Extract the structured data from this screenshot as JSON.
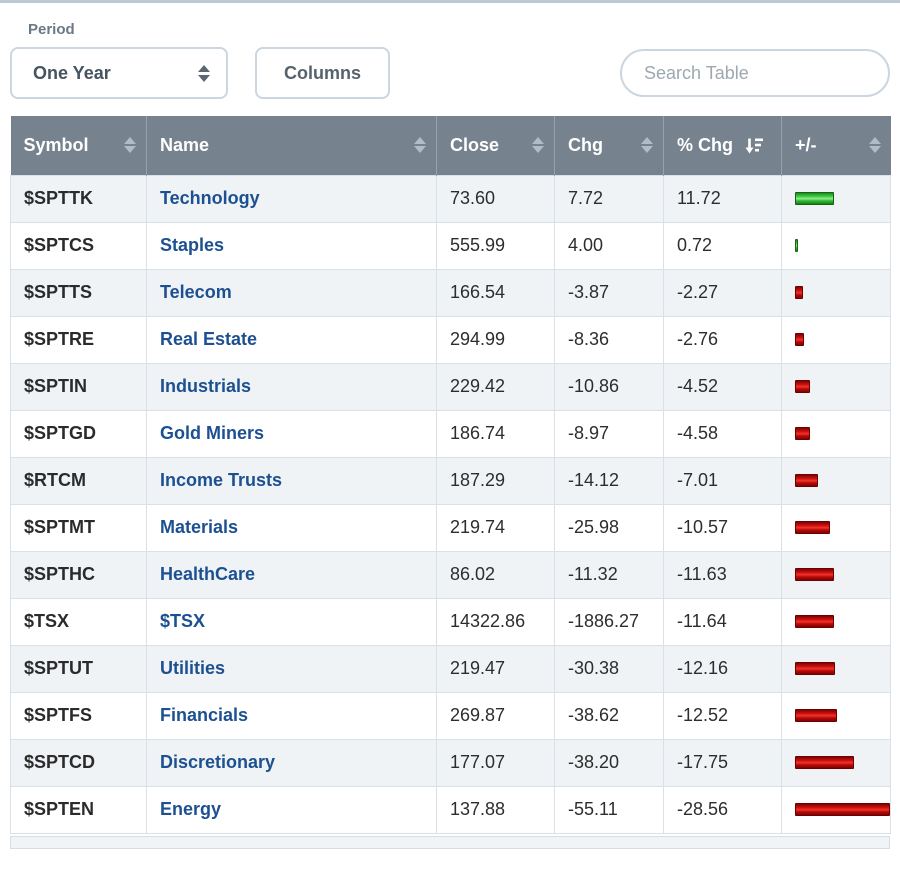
{
  "controls": {
    "period_label": "Period",
    "period_value": "One Year",
    "columns_label": "Columns",
    "search_placeholder": "Search Table"
  },
  "table": {
    "columns": [
      {
        "label": "Symbol",
        "sort": "none"
      },
      {
        "label": "Name",
        "sort": "none"
      },
      {
        "label": "Close",
        "sort": "none"
      },
      {
        "label": "Chg",
        "sort": "none"
      },
      {
        "label": "% Chg",
        "sort": "desc"
      },
      {
        "label": "+/-",
        "sort": "none"
      }
    ],
    "rows": [
      {
        "symbol": "$SPTTK",
        "name": "Technology",
        "close": "73.60",
        "chg": "7.72",
        "pct_chg": "11.72",
        "direction": "up"
      },
      {
        "symbol": "$SPTCS",
        "name": "Staples",
        "close": "555.99",
        "chg": "4.00",
        "pct_chg": "0.72",
        "direction": "up"
      },
      {
        "symbol": "$SPTTS",
        "name": "Telecom",
        "close": "166.54",
        "chg": "-3.87",
        "pct_chg": "-2.27",
        "direction": "down"
      },
      {
        "symbol": "$SPTRE",
        "name": "Real Estate",
        "close": "294.99",
        "chg": "-8.36",
        "pct_chg": "-2.76",
        "direction": "down"
      },
      {
        "symbol": "$SPTIN",
        "name": "Industrials",
        "close": "229.42",
        "chg": "-10.86",
        "pct_chg": "-4.52",
        "direction": "down"
      },
      {
        "symbol": "$SPTGD",
        "name": "Gold Miners",
        "close": "186.74",
        "chg": "-8.97",
        "pct_chg": "-4.58",
        "direction": "down"
      },
      {
        "symbol": "$RTCM",
        "name": "Income Trusts",
        "close": "187.29",
        "chg": "-14.12",
        "pct_chg": "-7.01",
        "direction": "down"
      },
      {
        "symbol": "$SPTMT",
        "name": "Materials",
        "close": "219.74",
        "chg": "-25.98",
        "pct_chg": "-10.57",
        "direction": "down"
      },
      {
        "symbol": "$SPTHC",
        "name": "HealthCare",
        "close": "86.02",
        "chg": "-11.32",
        "pct_chg": "-11.63",
        "direction": "down"
      },
      {
        "symbol": "$TSX",
        "name": "$TSX",
        "close": "14322.86",
        "chg": "-1886.27",
        "pct_chg": "-11.64",
        "direction": "down"
      },
      {
        "symbol": "$SPTUT",
        "name": "Utilities",
        "close": "219.47",
        "chg": "-30.38",
        "pct_chg": "-12.16",
        "direction": "down"
      },
      {
        "symbol": "$SPTFS",
        "name": "Financials",
        "close": "269.87",
        "chg": "-38.62",
        "pct_chg": "-12.52",
        "direction": "down"
      },
      {
        "symbol": "$SPTCD",
        "name": "Discretionary",
        "close": "177.07",
        "chg": "-38.20",
        "pct_chg": "-17.75",
        "direction": "down"
      },
      {
        "symbol": "$SPTEN",
        "name": "Energy",
        "close": "137.88",
        "chg": "-55.11",
        "pct_chg": "-28.56",
        "direction": "down"
      }
    ]
  },
  "colors": {
    "header_bg": "#76828e",
    "link": "#1d5091",
    "bar_up": "#3fc43f",
    "bar_down": "#d41212",
    "row_stripe": "#f0f3f6"
  }
}
